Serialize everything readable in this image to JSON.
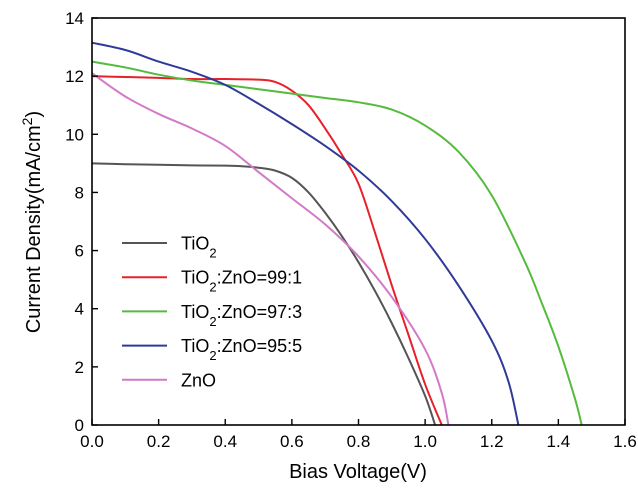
{
  "chart_data": {
    "type": "line",
    "xlabel": "Bias Voltage(V)",
    "ylabel_main": "Current Density(mA/cm",
    "ylabel_sup": "2",
    "ylabel_close": ")",
    "xlim": [
      0,
      1.6
    ],
    "ylim": [
      0,
      14
    ],
    "x_ticks": [
      "0.0",
      "0.2",
      "0.4",
      "0.6",
      "0.8",
      "1.0",
      "1.2",
      "1.4",
      "1.6"
    ],
    "y_ticks": [
      "0",
      "2",
      "4",
      "6",
      "8",
      "10",
      "12",
      "14"
    ],
    "grid": false,
    "legend_position": "bottom-left",
    "series": [
      {
        "name": "TiO2",
        "name_main": "TiO",
        "name_sub": "2",
        "name_rest": "",
        "color": "#555555",
        "points": [
          [
            0,
            9.0
          ],
          [
            0.1,
            8.97
          ],
          [
            0.2,
            8.95
          ],
          [
            0.3,
            8.93
          ],
          [
            0.4,
            8.92
          ],
          [
            0.45,
            8.9
          ],
          [
            0.5,
            8.85
          ],
          [
            0.55,
            8.75
          ],
          [
            0.6,
            8.5
          ],
          [
            0.65,
            8.0
          ],
          [
            0.7,
            7.3
          ],
          [
            0.75,
            6.5
          ],
          [
            0.8,
            5.6
          ],
          [
            0.85,
            4.6
          ],
          [
            0.9,
            3.5
          ],
          [
            0.95,
            2.3
          ],
          [
            1.0,
            1.0
          ],
          [
            1.03,
            0
          ]
        ]
      },
      {
        "name": "TiO2:ZnO=99:1",
        "name_main": "TiO",
        "name_sub": "2",
        "name_rest": ":ZnO=99:1",
        "color": "#e8202a",
        "points": [
          [
            0,
            12.0
          ],
          [
            0.1,
            11.97
          ],
          [
            0.2,
            11.94
          ],
          [
            0.3,
            11.9
          ],
          [
            0.4,
            11.9
          ],
          [
            0.5,
            11.88
          ],
          [
            0.55,
            11.8
          ],
          [
            0.6,
            11.5
          ],
          [
            0.65,
            11.0
          ],
          [
            0.7,
            10.2
          ],
          [
            0.75,
            9.3
          ],
          [
            0.8,
            8.3
          ],
          [
            0.85,
            6.6
          ],
          [
            0.9,
            4.8
          ],
          [
            0.95,
            3.1
          ],
          [
            1.0,
            1.4
          ],
          [
            1.05,
            0
          ]
        ]
      },
      {
        "name": "TiO2:ZnO=97:3",
        "name_main": "TiO",
        "name_sub": "2",
        "name_rest": ":ZnO=97:3",
        "color": "#55bb3e",
        "points": [
          [
            0,
            12.5
          ],
          [
            0.1,
            12.3
          ],
          [
            0.2,
            12.05
          ],
          [
            0.3,
            11.85
          ],
          [
            0.4,
            11.7
          ],
          [
            0.5,
            11.55
          ],
          [
            0.6,
            11.4
          ],
          [
            0.7,
            11.25
          ],
          [
            0.8,
            11.1
          ],
          [
            0.9,
            10.85
          ],
          [
            1.0,
            10.3
          ],
          [
            1.1,
            9.4
          ],
          [
            1.2,
            7.9
          ],
          [
            1.3,
            5.6
          ],
          [
            1.35,
            4.2
          ],
          [
            1.4,
            2.7
          ],
          [
            1.45,
            0.9
          ],
          [
            1.47,
            0
          ]
        ]
      },
      {
        "name": "TiO2:ZnO=95:5",
        "name_main": "TiO",
        "name_sub": "2",
        "name_rest": ":ZnO=95:5",
        "color": "#2e3a97",
        "points": [
          [
            0,
            13.15
          ],
          [
            0.1,
            12.9
          ],
          [
            0.2,
            12.5
          ],
          [
            0.3,
            12.15
          ],
          [
            0.4,
            11.7
          ],
          [
            0.5,
            11.05
          ],
          [
            0.6,
            10.35
          ],
          [
            0.7,
            9.6
          ],
          [
            0.8,
            8.75
          ],
          [
            0.9,
            7.7
          ],
          [
            1.0,
            6.4
          ],
          [
            1.1,
            4.8
          ],
          [
            1.2,
            2.9
          ],
          [
            1.25,
            1.5
          ],
          [
            1.28,
            0
          ]
        ]
      },
      {
        "name": "ZnO",
        "name_main": "ZnO",
        "name_sub": "",
        "name_rest": "",
        "color": "#d27ac7",
        "points": [
          [
            0,
            12.1
          ],
          [
            0.1,
            11.3
          ],
          [
            0.2,
            10.7
          ],
          [
            0.3,
            10.2
          ],
          [
            0.4,
            9.6
          ],
          [
            0.5,
            8.7
          ],
          [
            0.6,
            7.8
          ],
          [
            0.7,
            6.9
          ],
          [
            0.8,
            5.8
          ],
          [
            0.9,
            4.4
          ],
          [
            1.0,
            2.6
          ],
          [
            1.05,
            1.1
          ],
          [
            1.07,
            0
          ]
        ]
      }
    ]
  }
}
